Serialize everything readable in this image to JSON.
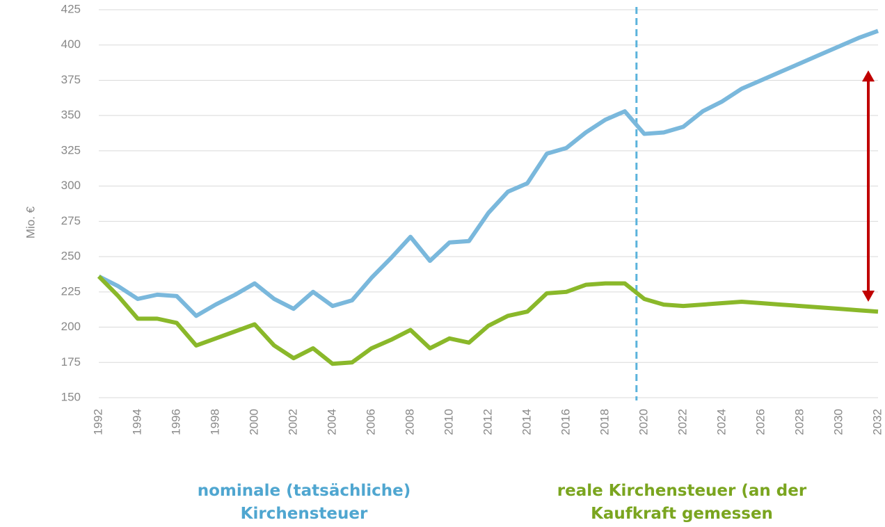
{
  "chart_data": {
    "type": "line",
    "y_label": "Mio. €",
    "x": [
      1992,
      1993,
      1994,
      1995,
      1996,
      1997,
      1998,
      1999,
      2000,
      2001,
      2002,
      2003,
      2004,
      2005,
      2006,
      2007,
      2008,
      2009,
      2010,
      2011,
      2012,
      2013,
      2014,
      2015,
      2016,
      2017,
      2018,
      2019,
      2020,
      2021,
      2022,
      2023,
      2024,
      2025,
      2026,
      2027,
      2028,
      2029,
      2030,
      2031,
      2032
    ],
    "series": [
      {
        "name": "nominale (tatsächliche) Kirchensteuer",
        "color": "#7ab8dc",
        "label_color": "#4fa6d0",
        "values": [
          236,
          229,
          220,
          223,
          222,
          208,
          216,
          223,
          231,
          220,
          213,
          225,
          215,
          219,
          235,
          249,
          264,
          247,
          260,
          261,
          281,
          296,
          302,
          323,
          327,
          338,
          347,
          353,
          337,
          338,
          342,
          353,
          360,
          369,
          375,
          381,
          387,
          393,
          399,
          405,
          410
        ]
      },
      {
        "name": "reale Kirchensteuer (an der Kaufkraft gemessen",
        "color": "#8ab82a",
        "label_color": "#7aa51f",
        "values": [
          236,
          222,
          206,
          206,
          203,
          187,
          192,
          197,
          202,
          187,
          178,
          185,
          174,
          175,
          185,
          191,
          198,
          185,
          192,
          189,
          201,
          208,
          211,
          224,
          225,
          230,
          231,
          231,
          220,
          216,
          215,
          216,
          217,
          218,
          217,
          216,
          215,
          214,
          213,
          212,
          211
        ]
      }
    ],
    "xlim": [
      1992,
      2032
    ],
    "xticks": [
      1992,
      1994,
      1996,
      1998,
      2000,
      2002,
      2004,
      2006,
      2008,
      2010,
      2012,
      2014,
      2016,
      2018,
      2020,
      2022,
      2024,
      2026,
      2028,
      2030,
      2032
    ],
    "ylim": [
      150,
      425
    ],
    "yticks": [
      150,
      175,
      200,
      225,
      250,
      275,
      300,
      325,
      350,
      375,
      400,
      425
    ],
    "grid": true,
    "divider": {
      "x": 2019.6,
      "color": "#5bb3dc"
    },
    "arrow": {
      "x": 2031.5,
      "y": [
        218,
        382
      ],
      "color": "#c00000"
    }
  }
}
